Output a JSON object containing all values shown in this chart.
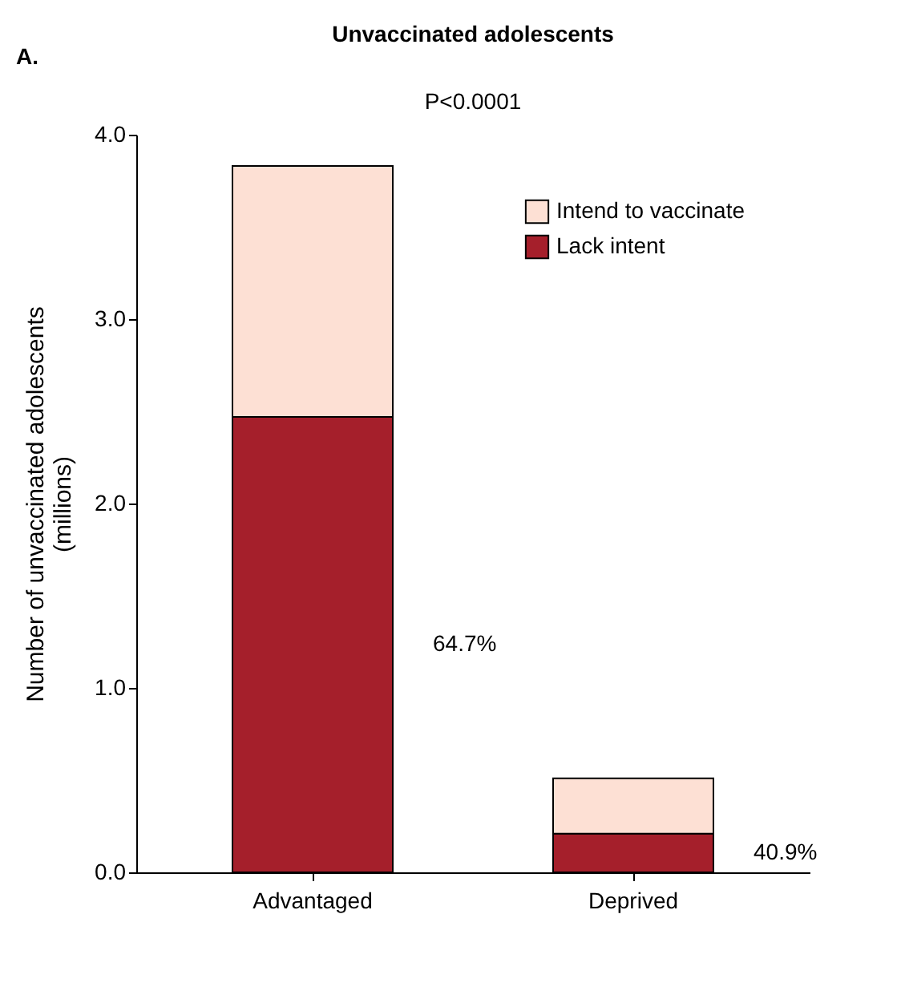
{
  "chart_data": {
    "type": "bar",
    "title": "Unvaccinated adolescents",
    "ylabel": "Number of unvaccinated adolescents (millions)",
    "categories": [
      "Advantaged",
      "Deprived"
    ],
    "stacked": true,
    "series": [
      {
        "name": "Lack intent",
        "color": "#a51f2b",
        "values": [
          2.47,
          0.21
        ]
      },
      {
        "name": "Intend to vaccinate",
        "color": "#fde0d4",
        "values": [
          1.36,
          0.3
        ]
      }
    ],
    "ylim": [
      0,
      4
    ],
    "yticks": [
      {
        "value": 0,
        "label": "0.0"
      },
      {
        "value": 1,
        "label": "1.0"
      },
      {
        "value": 2,
        "label": "2.0"
      },
      {
        "value": 3,
        "label": "3.0"
      },
      {
        "value": 4,
        "label": "4.0"
      }
    ],
    "annotations": [
      "A.",
      "P<0.0001",
      "64.7%",
      "40.9%"
    ],
    "grid": false,
    "legend": "top right"
  }
}
